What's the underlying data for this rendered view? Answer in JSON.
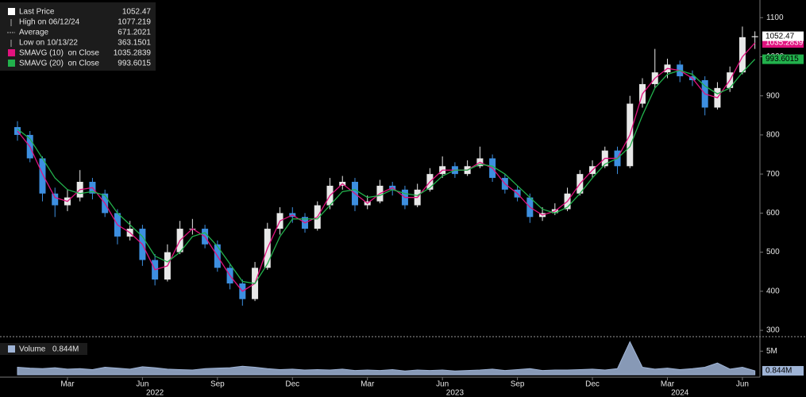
{
  "chart_data": {
    "type": "candlestick",
    "categories": [
      null,
      null,
      null,
      null,
      null,
      null,
      null,
      null,
      null,
      null,
      null,
      null,
      null,
      null,
      null,
      null,
      null,
      null,
      null,
      null,
      null,
      null,
      null,
      null,
      null,
      null,
      null,
      null,
      null,
      null,
      null,
      null,
      null,
      null,
      null,
      null,
      null,
      null,
      null,
      null,
      null,
      null,
      null,
      null,
      null,
      null,
      null,
      null,
      null,
      null,
      null,
      null,
      null,
      null,
      null,
      null,
      null,
      null,
      null,
      null
    ],
    "open": [
      820,
      800,
      740,
      650,
      620,
      640,
      680,
      650,
      600,
      540,
      560,
      480,
      430,
      500,
      560,
      560,
      520,
      460,
      420,
      380,
      460,
      560,
      600,
      590,
      560,
      620,
      670,
      680,
      620,
      630,
      670,
      660,
      620,
      660,
      700,
      720,
      700,
      720,
      740,
      690,
      660,
      640,
      590,
      600,
      610,
      650,
      700,
      720,
      760,
      720,
      880,
      930,
      960,
      980,
      950,
      940,
      870,
      920,
      960,
      1050
    ],
    "high": [
      835,
      810,
      745,
      665,
      660,
      710,
      690,
      660,
      610,
      580,
      570,
      495,
      520,
      580,
      585,
      570,
      530,
      470,
      430,
      475,
      575,
      615,
      615,
      600,
      630,
      690,
      695,
      690,
      645,
      685,
      680,
      670,
      675,
      715,
      745,
      730,
      735,
      770,
      750,
      700,
      670,
      650,
      615,
      625,
      665,
      710,
      735,
      770,
      770,
      900,
      945,
      1020,
      995,
      990,
      965,
      950,
      935,
      975,
      1077.219,
      1065
    ],
    "low": [
      785,
      730,
      630,
      590,
      605,
      630,
      635,
      590,
      520,
      530,
      465,
      415,
      425,
      495,
      545,
      510,
      450,
      405,
      363.1501,
      375,
      455,
      545,
      575,
      550,
      555,
      610,
      660,
      605,
      610,
      625,
      645,
      610,
      615,
      655,
      690,
      690,
      695,
      715,
      680,
      650,
      630,
      575,
      580,
      595,
      605,
      645,
      690,
      715,
      700,
      715,
      870,
      920,
      945,
      935,
      925,
      850,
      865,
      910,
      955,
      1020
    ],
    "close": [
      800,
      740,
      650,
      620,
      640,
      680,
      650,
      600,
      540,
      560,
      480,
      430,
      500,
      560,
      560,
      520,
      460,
      420,
      380,
      460,
      560,
      600,
      590,
      560,
      620,
      670,
      680,
      620,
      630,
      670,
      660,
      620,
      660,
      700,
      720,
      700,
      720,
      740,
      690,
      660,
      640,
      590,
      600,
      610,
      650,
      700,
      720,
      760,
      720,
      880,
      930,
      960,
      980,
      950,
      940,
      870,
      920,
      960,
      1050,
      1052.47
    ],
    "up_color": "#e8e8e8",
    "down_color": "#3d8fe0",
    "series": [
      {
        "name": "SMAVG (10)  on Close",
        "color": "#e0127e",
        "values": [
          810,
          770,
          700,
          640,
          630,
          660,
          665,
          625,
          570,
          550,
          520,
          455,
          465,
          530,
          560,
          540,
          490,
          440,
          400,
          420,
          510,
          580,
          595,
          575,
          590,
          645,
          675,
          650,
          625,
          650,
          665,
          640,
          640,
          680,
          710,
          710,
          710,
          730,
          715,
          675,
          650,
          615,
          595,
          605,
          630,
          675,
          710,
          740,
          740,
          800,
          905,
          945,
          970,
          965,
          945,
          905,
          895,
          940,
          1000,
          1035.2839
        ]
      },
      {
        "name": "SMAVG (20)  on Close",
        "color": "#22b14c",
        "values": [
          815,
          790,
          740,
          690,
          660,
          650,
          655,
          645,
          600,
          570,
          540,
          490,
          475,
          500,
          540,
          550,
          515,
          470,
          425,
          420,
          470,
          540,
          585,
          585,
          585,
          620,
          655,
          660,
          640,
          645,
          660,
          650,
          645,
          665,
          695,
          710,
          710,
          725,
          720,
          700,
          670,
          640,
          610,
          600,
          615,
          650,
          690,
          725,
          740,
          770,
          850,
          920,
          955,
          965,
          955,
          925,
          905,
          920,
          960,
          993.6015
        ]
      }
    ],
    "legend_labels": [
      "Last Price",
      "High on 06/12/24",
      "Average",
      "Low on 10/13/22"
    ],
    "average": 671.2021,
    "ylim": [
      292,
      1135
    ],
    "yticks": [
      300,
      400,
      500,
      600,
      700,
      800,
      900,
      1000,
      1100
    ],
    "xticks": [
      {
        "value": 4,
        "label": "Mar"
      },
      {
        "value": 10,
        "label": "Jun"
      },
      {
        "value": 16,
        "label": "Sep"
      },
      {
        "value": 22,
        "label": "Dec"
      },
      {
        "value": 28,
        "label": "Mar"
      },
      {
        "value": 34,
        "label": "Jun"
      },
      {
        "value": 40,
        "label": "Sep"
      },
      {
        "value": 46,
        "label": "Dec"
      },
      {
        "value": 52,
        "label": "Mar"
      },
      {
        "value": 58,
        "label": "Jun"
      }
    ],
    "year_ticks": [
      {
        "value": 11,
        "label": "2022"
      },
      {
        "value": 35,
        "label": "2023"
      },
      {
        "value": 53,
        "label": "2024"
      }
    ],
    "volume": {
      "name": "Volume",
      "color": "#9fb4d6",
      "value_label": "0.844M",
      "values": [
        1.6,
        1.4,
        1.3,
        1.5,
        1.2,
        1.3,
        1.1,
        1.6,
        1.4,
        1.2,
        1.7,
        1.5,
        1.2,
        1.1,
        1.0,
        1.3,
        1.4,
        1.5,
        1.8,
        1.6,
        1.3,
        1.1,
        1.2,
        1.0,
        1.1,
        1.0,
        1.2,
        0.9,
        1.0,
        0.9,
        1.1,
        0.8,
        1.0,
        0.9,
        1.0,
        0.8,
        0.9,
        1.0,
        1.2,
        0.9,
        1.1,
        1.3,
        0.9,
        1.0,
        1.0,
        1.1,
        1.2,
        1.0,
        1.3,
        7.0,
        1.6,
        1.2,
        1.4,
        1.1,
        1.3,
        1.6,
        2.5,
        1.2,
        1.6,
        0.844
      ],
      "ylim": [
        0,
        7.4
      ],
      "yticks": [
        {
          "value": 5,
          "label": "5M"
        }
      ]
    }
  }
}
